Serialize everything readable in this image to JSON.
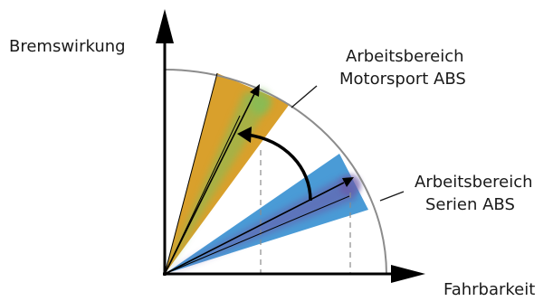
{
  "axes": {
    "y_label": "Bremswirkung",
    "x_label": "Fahrbarkeit"
  },
  "regions": [
    {
      "id": "motorsport",
      "line1": "Arbeitsbereich",
      "line2": "Motorsport ABS",
      "color": "#d9a02c"
    },
    {
      "id": "serien",
      "line1": "Arbeitsbereich",
      "line2": "Serien ABS",
      "color": "#4a9bd6"
    }
  ],
  "colors": {
    "axis": "#000000",
    "arc": "#8c8c8c",
    "glow_green": "#7fbf5a",
    "glow_purple": "#6a5aa8",
    "dashed": "#8c8c8c"
  }
}
